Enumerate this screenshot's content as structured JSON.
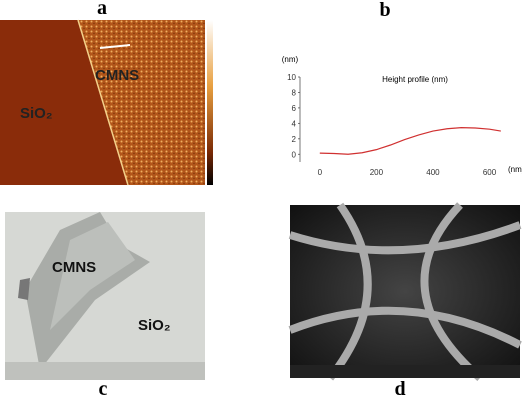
{
  "panels": {
    "a": {
      "label": "a",
      "region1": "CMNS",
      "region2": "SiO₂"
    },
    "b": {
      "label": "b"
    },
    "c": {
      "label": "c",
      "region1": "CMNS",
      "region2": "SiO₂"
    },
    "d": {
      "label": "d"
    }
  },
  "chart_data": {
    "type": "line",
    "title": "Height profile (nm)",
    "xlabel": "(nm)",
    "ylabel": "(nm)",
    "x": [
      0,
      50,
      100,
      150,
      200,
      250,
      300,
      350,
      400,
      450,
      500,
      550,
      600,
      640
    ],
    "values": [
      0.15,
      0.1,
      0.0,
      0.2,
      0.6,
      1.2,
      1.9,
      2.5,
      3.0,
      3.3,
      3.45,
      3.4,
      3.25,
      3.0
    ],
    "color": "#d03030",
    "xlim": [
      -70,
      690
    ],
    "xticks": [
      0,
      200,
      400,
      600
    ],
    "ylim": [
      -1,
      10
    ],
    "yticks": [
      0,
      2,
      4,
      6,
      8,
      10
    ]
  }
}
